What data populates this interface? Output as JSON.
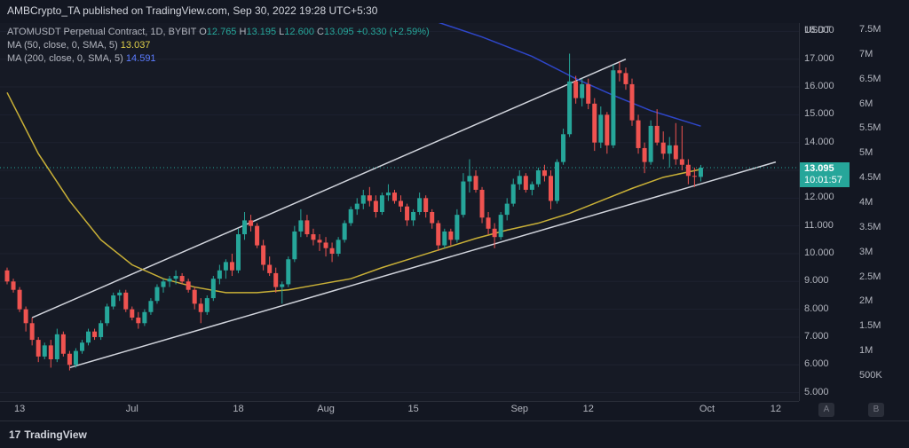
{
  "header": {
    "publisher": "AMBCrypto_TA published on TradingView.com, Sep 30, 2022 19:28 UTC+5:30"
  },
  "legend": {
    "symbol": "ATOMUSDT Perpetual Contract, 1D, BYBIT",
    "ohlc": {
      "o_label": "O",
      "o": "12.765",
      "h_label": "H",
      "h": "13.195",
      "l_label": "L",
      "l": "12.600",
      "c_label": "C",
      "c": "13.095",
      "change": "+0.330 (+2.59%)"
    },
    "ma50": {
      "label": "MA (50, close, 0, SMA, 5)",
      "value": "13.037",
      "color": "#e0d04a"
    },
    "ma200": {
      "label": "MA (200, close, 0, SMA, 5)",
      "value": "14.591",
      "color": "#2962ff"
    }
  },
  "axis": {
    "currency": "USDT",
    "price_ticks": [
      "18.000",
      "17.000",
      "16.000",
      "15.000",
      "14.000",
      "13.000",
      "12.000",
      "11.000",
      "10.000",
      "9.000",
      "8.000",
      "7.000",
      "6.000",
      "5.000"
    ],
    "volume_ticks": [
      "7.5M",
      "7M",
      "6.5M",
      "6M",
      "5.5M",
      "5M",
      "4.5M",
      "4M",
      "3.5M",
      "3M",
      "2.5M",
      "2M",
      "1.5M",
      "1M",
      "500K"
    ],
    "time_ticks": [
      "13",
      "Jul",
      "18",
      "Aug",
      "15",
      "Sep",
      "12",
      "Oct",
      "12"
    ],
    "mode_buttons": [
      "A",
      "B"
    ]
  },
  "last_price": {
    "value": "13.095",
    "countdown": "10:01:57"
  },
  "footer": {
    "brand": "TradingView",
    "logo_mark": "17"
  },
  "colors": {
    "up": "#26a69a",
    "down": "#ef5350",
    "ma50": "#c9b037",
    "ma200": "#2e46c9",
    "trendline": "#d1d4dc",
    "background": "#161a25"
  },
  "chart_data": {
    "type": "candlestick",
    "symbol": "ATOMUSDT",
    "interval": "1D",
    "y_range": [
      4.7,
      18.3
    ],
    "x_range": [
      "2022-06-11",
      "2022-10-14"
    ],
    "candles": [
      [
        "2022-06-11",
        9.4,
        9.5,
        8.9,
        9.0
      ],
      [
        "2022-06-12",
        9.0,
        9.1,
        8.6,
        8.7
      ],
      [
        "2022-06-13",
        8.7,
        8.8,
        7.9,
        8.0
      ],
      [
        "2022-06-14",
        8.0,
        8.1,
        7.2,
        7.5
      ],
      [
        "2022-06-15",
        7.5,
        7.7,
        6.7,
        6.9
      ],
      [
        "2022-06-16",
        6.9,
        7.0,
        6.1,
        6.3
      ],
      [
        "2022-06-17",
        6.3,
        6.8,
        6.2,
        6.7
      ],
      [
        "2022-06-18",
        6.7,
        6.9,
        5.9,
        6.2
      ],
      [
        "2022-06-19",
        6.2,
        7.3,
        6.1,
        7.1
      ],
      [
        "2022-06-20",
        7.1,
        7.2,
        6.3,
        6.4
      ],
      [
        "2022-06-21",
        6.4,
        6.5,
        5.8,
        6.0
      ],
      [
        "2022-06-22",
        6.0,
        6.6,
        5.9,
        6.5
      ],
      [
        "2022-06-23",
        6.5,
        6.9,
        6.4,
        6.8
      ],
      [
        "2022-06-24",
        6.8,
        7.3,
        6.7,
        7.2
      ],
      [
        "2022-06-25",
        7.2,
        7.3,
        6.9,
        7.0
      ],
      [
        "2022-06-26",
        7.0,
        7.6,
        6.9,
        7.5
      ],
      [
        "2022-06-27",
        7.5,
        8.2,
        7.4,
        8.1
      ],
      [
        "2022-06-28",
        8.1,
        8.6,
        8.0,
        8.5
      ],
      [
        "2022-06-29",
        8.5,
        8.7,
        8.3,
        8.6
      ],
      [
        "2022-06-30",
        8.6,
        8.7,
        7.9,
        8.0
      ],
      [
        "2022-07-01",
        8.0,
        8.1,
        7.6,
        7.7
      ],
      [
        "2022-07-02",
        7.7,
        7.9,
        7.3,
        7.5
      ],
      [
        "2022-07-03",
        7.5,
        8.0,
        7.4,
        7.9
      ],
      [
        "2022-07-04",
        7.9,
        8.4,
        7.8,
        8.3
      ],
      [
        "2022-07-05",
        8.3,
        8.9,
        8.2,
        8.8
      ],
      [
        "2022-07-06",
        8.8,
        9.1,
        8.6,
        9.0
      ],
      [
        "2022-07-07",
        9.0,
        9.2,
        8.8,
        9.1
      ],
      [
        "2022-07-08",
        9.1,
        9.4,
        8.9,
        9.2
      ],
      [
        "2022-07-09",
        9.2,
        9.3,
        8.9,
        9.0
      ],
      [
        "2022-07-10",
        9.0,
        9.1,
        8.6,
        8.7
      ],
      [
        "2022-07-11",
        8.7,
        8.8,
        8.0,
        8.2
      ],
      [
        "2022-07-12",
        8.2,
        8.4,
        7.5,
        7.9
      ],
      [
        "2022-07-13",
        7.9,
        8.5,
        7.8,
        8.4
      ],
      [
        "2022-07-14",
        8.4,
        9.2,
        8.3,
        9.1
      ],
      [
        "2022-07-15",
        9.1,
        9.6,
        8.9,
        9.4
      ],
      [
        "2022-07-16",
        9.4,
        9.8,
        9.1,
        9.7
      ],
      [
        "2022-07-17",
        9.7,
        10.0,
        9.2,
        9.4
      ],
      [
        "2022-07-18",
        9.4,
        10.9,
        9.3,
        10.7
      ],
      [
        "2022-07-19",
        10.7,
        11.5,
        10.5,
        11.2
      ],
      [
        "2022-07-20",
        11.2,
        11.4,
        10.8,
        11.0
      ],
      [
        "2022-07-21",
        11.0,
        11.1,
        10.2,
        10.3
      ],
      [
        "2022-07-22",
        10.3,
        10.5,
        9.4,
        9.6
      ],
      [
        "2022-07-23",
        9.6,
        9.9,
        9.2,
        9.3
      ],
      [
        "2022-07-24",
        9.3,
        9.5,
        8.6,
        8.8
      ],
      [
        "2022-07-25",
        8.8,
        9.0,
        8.2,
        8.9
      ],
      [
        "2022-07-26",
        8.9,
        9.9,
        8.8,
        9.8
      ],
      [
        "2022-07-27",
        9.8,
        11.0,
        9.7,
        10.8
      ],
      [
        "2022-07-28",
        10.8,
        11.6,
        10.6,
        11.2
      ],
      [
        "2022-07-29",
        11.2,
        11.4,
        10.6,
        10.7
      ],
      [
        "2022-07-30",
        10.7,
        10.9,
        10.3,
        10.5
      ],
      [
        "2022-07-31",
        10.5,
        10.7,
        10.1,
        10.4
      ],
      [
        "2022-08-01",
        10.4,
        10.6,
        9.9,
        10.2
      ],
      [
        "2022-08-02",
        10.2,
        10.4,
        9.7,
        10.0
      ],
      [
        "2022-08-03",
        10.0,
        10.6,
        9.9,
        10.5
      ],
      [
        "2022-08-04",
        10.5,
        11.2,
        10.4,
        11.1
      ],
      [
        "2022-08-05",
        11.1,
        11.7,
        11.0,
        11.6
      ],
      [
        "2022-08-06",
        11.6,
        12.0,
        11.4,
        11.8
      ],
      [
        "2022-08-07",
        11.8,
        12.3,
        11.6,
        12.1
      ],
      [
        "2022-08-08",
        12.1,
        12.4,
        11.7,
        11.9
      ],
      [
        "2022-08-09",
        11.9,
        12.1,
        11.3,
        11.5
      ],
      [
        "2022-08-10",
        11.5,
        12.2,
        11.4,
        12.1
      ],
      [
        "2022-08-11",
        12.1,
        12.5,
        11.9,
        12.2
      ],
      [
        "2022-08-12",
        12.2,
        12.3,
        11.8,
        11.9
      ],
      [
        "2022-08-13",
        11.9,
        12.1,
        11.5,
        11.7
      ],
      [
        "2022-08-14",
        11.7,
        11.8,
        11.0,
        11.2
      ],
      [
        "2022-08-15",
        11.2,
        11.6,
        11.0,
        11.5
      ],
      [
        "2022-08-16",
        11.5,
        12.2,
        11.4,
        12.0
      ],
      [
        "2022-08-17",
        12.0,
        12.1,
        11.3,
        11.5
      ],
      [
        "2022-08-18",
        11.5,
        11.6,
        10.9,
        11.1
      ],
      [
        "2022-08-19",
        11.1,
        11.2,
        10.1,
        10.3
      ],
      [
        "2022-08-20",
        10.3,
        10.9,
        10.2,
        10.8
      ],
      [
        "2022-08-21",
        10.8,
        10.9,
        10.3,
        10.5
      ],
      [
        "2022-08-22",
        10.5,
        11.6,
        10.4,
        11.4
      ],
      [
        "2022-08-23",
        11.4,
        12.9,
        11.3,
        12.6
      ],
      [
        "2022-08-24",
        12.6,
        13.4,
        12.2,
        12.8
      ],
      [
        "2022-08-25",
        12.8,
        13.0,
        12.2,
        12.3
      ],
      [
        "2022-08-26",
        12.3,
        12.4,
        11.1,
        11.3
      ],
      [
        "2022-08-27",
        11.3,
        11.5,
        10.7,
        10.9
      ],
      [
        "2022-08-28",
        10.9,
        11.1,
        10.2,
        10.6
      ],
      [
        "2022-08-29",
        10.6,
        11.5,
        10.5,
        11.4
      ],
      [
        "2022-08-30",
        11.4,
        12.0,
        11.2,
        11.8
      ],
      [
        "2022-08-31",
        11.8,
        12.7,
        11.7,
        12.5
      ],
      [
        "2022-09-01",
        12.5,
        13.0,
        12.3,
        12.8
      ],
      [
        "2022-09-02",
        12.8,
        12.9,
        12.2,
        12.3
      ],
      [
        "2022-09-03",
        12.3,
        12.6,
        12.1,
        12.5
      ],
      [
        "2022-09-04",
        12.5,
        13.1,
        12.4,
        13.0
      ],
      [
        "2022-09-05",
        13.0,
        13.2,
        12.6,
        12.8
      ],
      [
        "2022-09-06",
        12.8,
        13.0,
        11.6,
        11.9
      ],
      [
        "2022-09-07",
        11.9,
        13.4,
        11.8,
        13.3
      ],
      [
        "2022-09-08",
        13.3,
        14.5,
        13.2,
        14.3
      ],
      [
        "2022-09-09",
        14.3,
        17.2,
        14.2,
        16.2
      ],
      [
        "2022-09-10",
        16.2,
        16.4,
        15.4,
        15.6
      ],
      [
        "2022-09-11",
        15.6,
        16.3,
        15.3,
        16.1
      ],
      [
        "2022-09-12",
        16.1,
        16.3,
        15.2,
        15.4
      ],
      [
        "2022-09-13",
        15.4,
        15.6,
        13.7,
        14.0
      ],
      [
        "2022-09-14",
        14.0,
        15.3,
        13.8,
        15.0
      ],
      [
        "2022-09-15",
        15.0,
        15.1,
        13.6,
        13.9
      ],
      [
        "2022-09-16",
        13.9,
        16.8,
        13.8,
        16.6
      ],
      [
        "2022-09-17",
        16.6,
        16.9,
        16.2,
        16.5
      ],
      [
        "2022-09-18",
        16.5,
        16.7,
        15.9,
        16.1
      ],
      [
        "2022-09-19",
        16.1,
        16.3,
        14.6,
        14.8
      ],
      [
        "2022-09-20",
        14.8,
        15.0,
        13.6,
        13.8
      ],
      [
        "2022-09-21",
        13.8,
        14.0,
        12.9,
        13.3
      ],
      [
        "2022-09-22",
        13.3,
        14.8,
        13.2,
        14.6
      ],
      [
        "2022-09-23",
        14.6,
        15.2,
        13.9,
        14.0
      ],
      [
        "2022-09-24",
        14.0,
        14.4,
        13.4,
        13.6
      ],
      [
        "2022-09-25",
        13.6,
        14.2,
        13.1,
        13.9
      ],
      [
        "2022-09-26",
        13.9,
        14.7,
        13.2,
        13.4
      ],
      [
        "2022-09-27",
        13.4,
        14.6,
        13.0,
        13.2
      ],
      [
        "2022-09-28",
        13.2,
        13.4,
        12.5,
        12.8
      ],
      [
        "2022-09-29",
        12.8,
        13.1,
        12.4,
        12.77
      ],
      [
        "2022-09-30",
        12.765,
        13.195,
        12.6,
        13.095
      ]
    ],
    "ma50": [
      [
        "2022-06-11",
        15.8
      ],
      [
        "2022-06-16",
        13.6
      ],
      [
        "2022-06-21",
        11.9
      ],
      [
        "2022-06-26",
        10.5
      ],
      [
        "2022-07-01",
        9.6
      ],
      [
        "2022-07-06",
        9.1
      ],
      [
        "2022-07-11",
        8.8
      ],
      [
        "2022-07-16",
        8.6
      ],
      [
        "2022-07-21",
        8.6
      ],
      [
        "2022-07-26",
        8.7
      ],
      [
        "2022-07-31",
        8.9
      ],
      [
        "2022-08-05",
        9.1
      ],
      [
        "2022-08-10",
        9.5
      ],
      [
        "2022-08-15",
        9.85
      ],
      [
        "2022-08-20",
        10.2
      ],
      [
        "2022-08-25",
        10.55
      ],
      [
        "2022-08-30",
        10.85
      ],
      [
        "2022-09-04",
        11.1
      ],
      [
        "2022-09-09",
        11.45
      ],
      [
        "2022-09-14",
        11.9
      ],
      [
        "2022-09-19",
        12.35
      ],
      [
        "2022-09-24",
        12.75
      ],
      [
        "2022-09-30",
        13.037
      ]
    ],
    "ma200": [
      [
        "2022-08-18",
        18.4
      ],
      [
        "2022-08-26",
        17.8
      ],
      [
        "2022-09-03",
        17.1
      ],
      [
        "2022-09-10",
        16.3
      ],
      [
        "2022-09-16",
        15.7
      ],
      [
        "2022-09-22",
        15.15
      ],
      [
        "2022-09-30",
        14.591
      ]
    ],
    "trendlines": [
      {
        "name": "upper",
        "from": [
          "2022-06-15",
          7.7
        ],
        "to": [
          "2022-09-18",
          17.0
        ]
      },
      {
        "name": "lower",
        "from": [
          "2022-06-21",
          5.9
        ],
        "to": [
          "2022-10-12",
          13.3
        ]
      }
    ],
    "last_price_line": 13.095
  }
}
